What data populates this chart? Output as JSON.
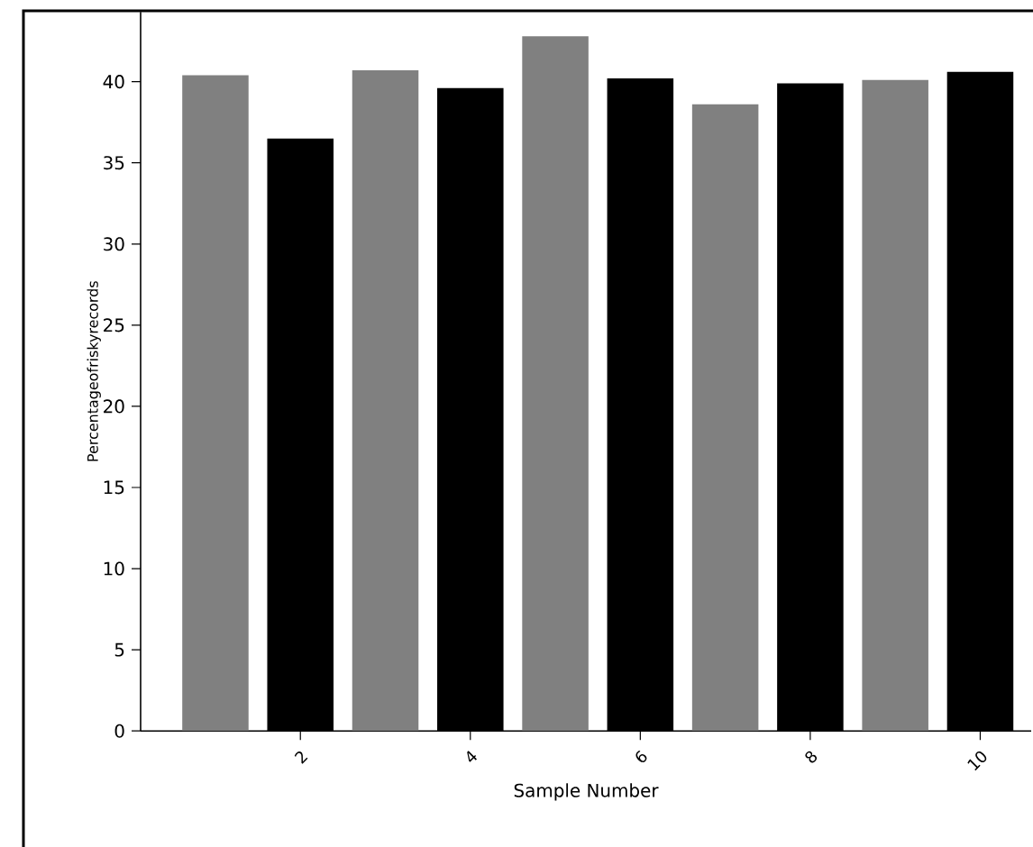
{
  "chart_data": {
    "type": "bar",
    "xlabel": "Sample Number",
    "ylabel": "Percentageofriskyrecords",
    "x": [
      1,
      2,
      3,
      4,
      5,
      6,
      7,
      8,
      9,
      10
    ],
    "values": [
      40.4,
      36.5,
      40.7,
      39.6,
      42.8,
      40.2,
      38.6,
      39.9,
      40.1,
      40.6
    ],
    "colors": [
      "#808080",
      "#000000",
      "#808080",
      "#000000",
      "#808080",
      "#000000",
      "#808080",
      "#000000",
      "#808080",
      "#000000"
    ],
    "xlim": [
      0.12,
      10.6
    ],
    "xticks": [
      2,
      4,
      6,
      8,
      10
    ],
    "ylim": [
      0,
      44.3
    ],
    "yticks": [
      0,
      5,
      10,
      15,
      20,
      25,
      30,
      35,
      40
    ]
  }
}
